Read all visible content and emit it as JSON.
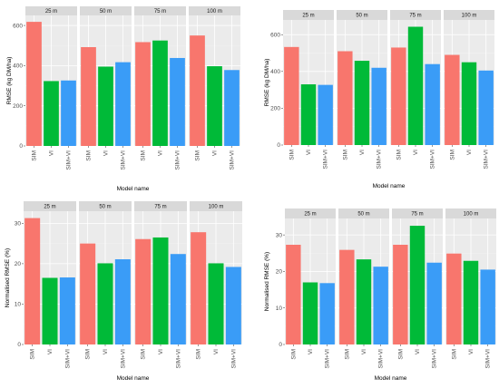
{
  "colors": {
    "panel_bg": "#ebebeb",
    "strip_bg": "#d9d9d9",
    "grid_major": "#ffffff",
    "SIM": "#f8766d",
    "VI": "#00ba38",
    "SIM+VI": "#3a9cf7"
  },
  "chart_data": [
    {
      "type": "bar",
      "facets": [
        "25 m",
        "50 m",
        "75 m",
        "100 m"
      ],
      "categories": [
        "SIM",
        "VI",
        "SIM+VI"
      ],
      "values": [
        [
          618,
          323,
          326
        ],
        [
          492,
          395,
          417
        ],
        [
          517,
          525,
          438
        ],
        [
          550,
          397,
          378
        ]
      ],
      "xlabel": "Model name",
      "ylabel": "RMSE (kg DM/ha)",
      "yticks": [
        0,
        200,
        400,
        600
      ],
      "ylim": [
        0,
        650
      ]
    },
    {
      "type": "bar",
      "facets": [
        "25 m",
        "50 m",
        "75 m",
        "100 m"
      ],
      "categories": [
        "SIM",
        "VI",
        "SIM+VI"
      ],
      "values": [
        [
          533,
          330,
          327
        ],
        [
          510,
          458,
          420
        ],
        [
          530,
          643,
          440
        ],
        [
          490,
          450,
          405
        ]
      ],
      "xlabel": "Model name",
      "ylabel": "RMSE (kg DM/ha)",
      "yticks": [
        0,
        200,
        400,
        600
      ],
      "ylim": [
        0,
        680
      ]
    },
    {
      "type": "bar",
      "facets": [
        "25 m",
        "50 m",
        "75 m",
        "100 m"
      ],
      "categories": [
        "SIM",
        "VI",
        "SIM+VI"
      ],
      "values": [
        [
          31.3,
          16.5,
          16.6
        ],
        [
          25.0,
          20.1,
          21.1
        ],
        [
          26.1,
          26.5,
          22.4
        ],
        [
          27.8,
          20.1,
          19.2
        ]
      ],
      "xlabel": "Model name",
      "ylabel": "Normalised RMSE (%)",
      "yticks": [
        0,
        10,
        20,
        30
      ],
      "ylim": [
        0,
        33
      ]
    },
    {
      "type": "bar",
      "facets": [
        "25 m",
        "50 m",
        "75 m",
        "100 m"
      ],
      "categories": [
        "SIM",
        "VI",
        "SIM+VI"
      ],
      "values": [
        [
          27.3,
          17.0,
          16.8
        ],
        [
          25.9,
          23.3,
          21.3
        ],
        [
          27.3,
          32.5,
          22.4
        ],
        [
          24.9,
          22.9,
          20.5
        ]
      ],
      "xlabel": "Model name",
      "ylabel": "Normalised RMSE (%)",
      "yticks": [
        0,
        10,
        20,
        30
      ],
      "ylim": [
        0,
        34.5
      ]
    }
  ]
}
